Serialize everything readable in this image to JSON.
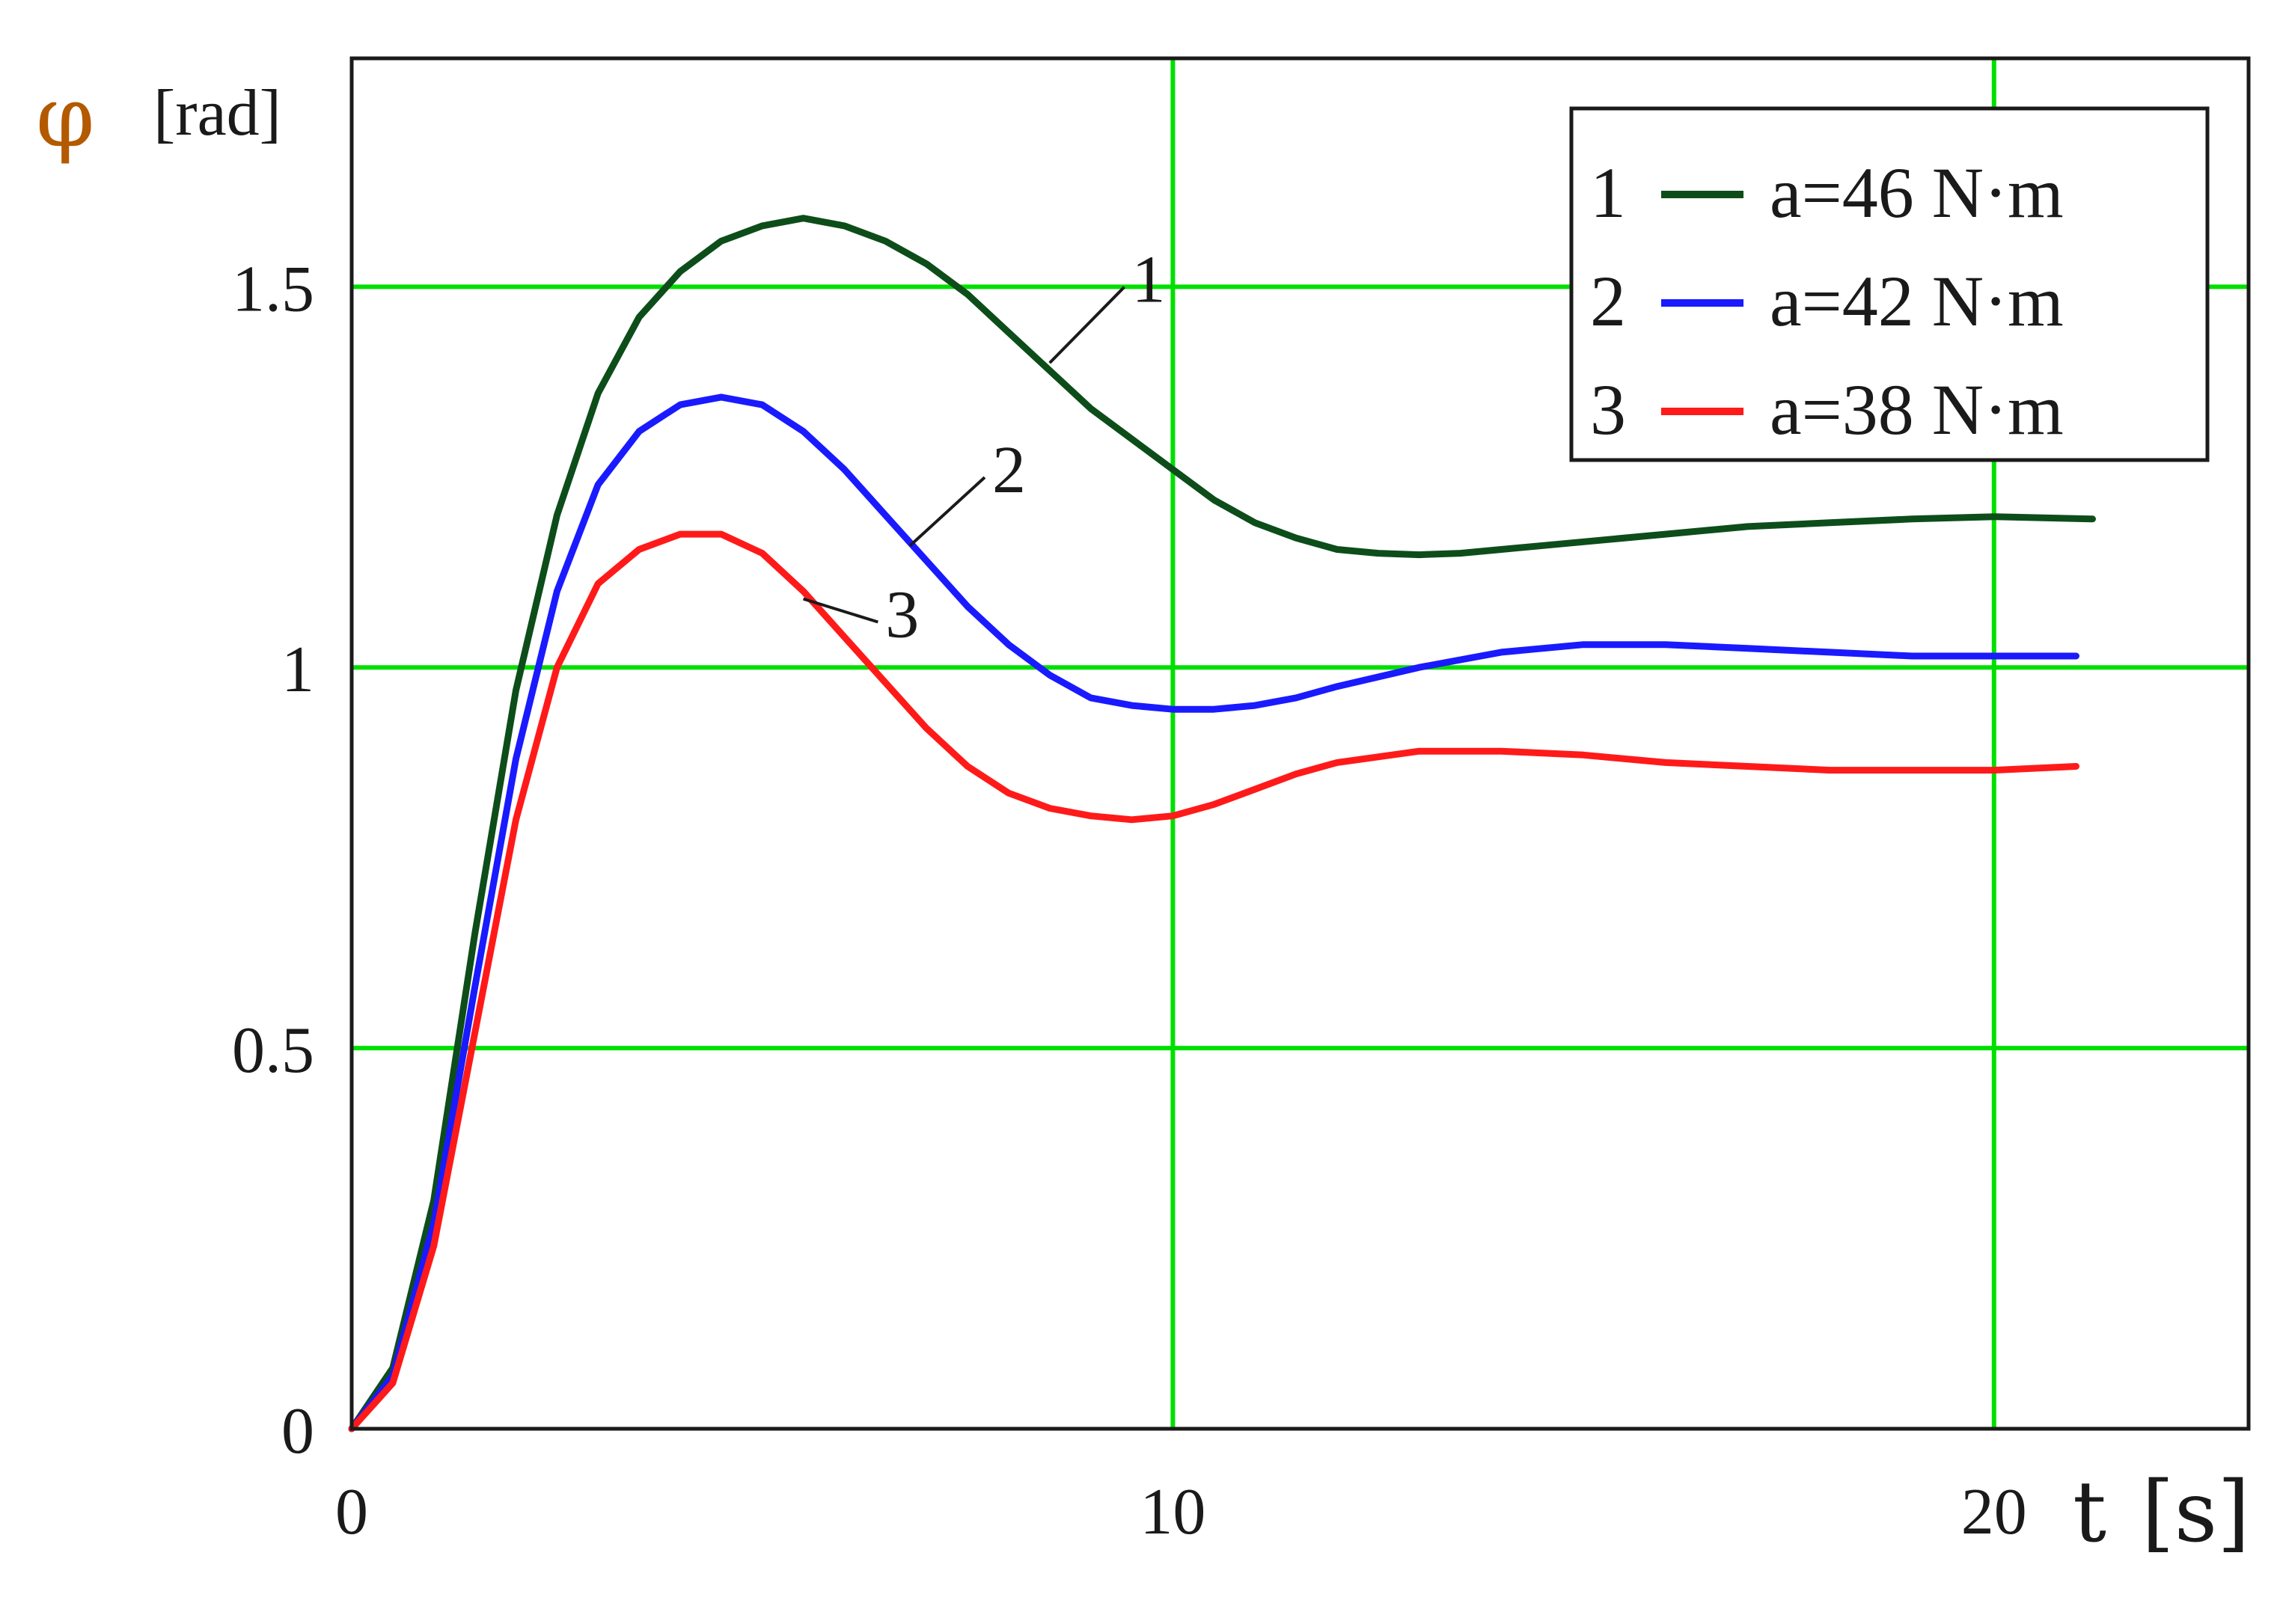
{
  "chart_data": {
    "type": "line",
    "xlabel_symbol": "t",
    "xlabel_unit": "[s]",
    "ylabel_symbol": "φ",
    "ylabel_unit": "[rad]",
    "xlim": [
      0,
      23.1
    ],
    "ylim": [
      0,
      1.8
    ],
    "x_ticks": [
      0,
      10,
      20
    ],
    "x_tick_labels": [
      "0",
      "10",
      "20"
    ],
    "y_ticks": [
      0,
      0.5,
      1,
      1.5
    ],
    "y_tick_labels": [
      "0",
      "0.5",
      "1",
      "1.5"
    ],
    "grid": true,
    "legend_position": "top-right",
    "colors": {
      "grid": "#00e000",
      "frame": "#1a1a1a",
      "axis_symbol": "#b35900",
      "axis_unit_bracket": "#4a6fa5"
    },
    "series": [
      {
        "name": "a=46 N·m",
        "legend_index": "1",
        "curve_label": "1",
        "color": "#0d4d1a",
        "points": [
          [
            0,
            0
          ],
          [
            0.5,
            0.08
          ],
          [
            1.0,
            0.3
          ],
          [
            1.5,
            0.65
          ],
          [
            2.0,
            0.97
          ],
          [
            2.5,
            1.2
          ],
          [
            3.0,
            1.36
          ],
          [
            3.5,
            1.46
          ],
          [
            4.0,
            1.52
          ],
          [
            4.5,
            1.56
          ],
          [
            5.0,
            1.58
          ],
          [
            5.5,
            1.59
          ],
          [
            6.0,
            1.58
          ],
          [
            6.5,
            1.56
          ],
          [
            7.0,
            1.53
          ],
          [
            7.5,
            1.49
          ],
          [
            8.0,
            1.44
          ],
          [
            8.5,
            1.39
          ],
          [
            9.0,
            1.34
          ],
          [
            9.5,
            1.3
          ],
          [
            10.0,
            1.26
          ],
          [
            10.5,
            1.22
          ],
          [
            11.0,
            1.19
          ],
          [
            11.5,
            1.17
          ],
          [
            12.0,
            1.155
          ],
          [
            12.5,
            1.15
          ],
          [
            13.0,
            1.148
          ],
          [
            13.5,
            1.15
          ],
          [
            14.0,
            1.155
          ],
          [
            15.0,
            1.165
          ],
          [
            16.0,
            1.175
          ],
          [
            17.0,
            1.185
          ],
          [
            18.0,
            1.19
          ],
          [
            19.0,
            1.195
          ],
          [
            20.0,
            1.198
          ],
          [
            21.2,
            1.195
          ]
        ]
      },
      {
        "name": "a=42 N·m",
        "legend_index": "2",
        "curve_label": "2",
        "color": "#1a1aff",
        "points": [
          [
            0,
            0
          ],
          [
            0.5,
            0.07
          ],
          [
            1.0,
            0.27
          ],
          [
            1.5,
            0.58
          ],
          [
            2.0,
            0.88
          ],
          [
            2.5,
            1.1
          ],
          [
            3.0,
            1.24
          ],
          [
            3.5,
            1.31
          ],
          [
            4.0,
            1.345
          ],
          [
            4.5,
            1.355
          ],
          [
            5.0,
            1.345
          ],
          [
            5.5,
            1.31
          ],
          [
            6.0,
            1.26
          ],
          [
            6.5,
            1.2
          ],
          [
            7.0,
            1.14
          ],
          [
            7.5,
            1.08
          ],
          [
            8.0,
            1.03
          ],
          [
            8.5,
            0.99
          ],
          [
            9.0,
            0.96
          ],
          [
            9.5,
            0.95
          ],
          [
            10.0,
            0.945
          ],
          [
            10.5,
            0.945
          ],
          [
            11.0,
            0.95
          ],
          [
            11.5,
            0.96
          ],
          [
            12.0,
            0.975
          ],
          [
            13.0,
            1.0
          ],
          [
            14.0,
            1.02
          ],
          [
            15.0,
            1.03
          ],
          [
            16.0,
            1.03
          ],
          [
            17.0,
            1.025
          ],
          [
            18.0,
            1.02
          ],
          [
            19.0,
            1.015
          ],
          [
            20.0,
            1.015
          ],
          [
            21.0,
            1.015
          ]
        ]
      },
      {
        "name": "a=38 N·m",
        "legend_index": "3",
        "curve_label": "3",
        "color": "#ff1a1a",
        "points": [
          [
            0,
            0
          ],
          [
            0.5,
            0.06
          ],
          [
            1.0,
            0.24
          ],
          [
            1.5,
            0.52
          ],
          [
            2.0,
            0.8
          ],
          [
            2.5,
            1.0
          ],
          [
            3.0,
            1.11
          ],
          [
            3.5,
            1.155
          ],
          [
            4.0,
            1.175
          ],
          [
            4.5,
            1.175
          ],
          [
            5.0,
            1.15
          ],
          [
            5.5,
            1.1
          ],
          [
            6.0,
            1.04
          ],
          [
            6.5,
            0.98
          ],
          [
            7.0,
            0.92
          ],
          [
            7.5,
            0.87
          ],
          [
            8.0,
            0.835
          ],
          [
            8.5,
            0.815
          ],
          [
            9.0,
            0.805
          ],
          [
            9.5,
            0.8
          ],
          [
            10.0,
            0.805
          ],
          [
            10.5,
            0.82
          ],
          [
            11.0,
            0.84
          ],
          [
            11.5,
            0.86
          ],
          [
            12.0,
            0.875
          ],
          [
            13.0,
            0.89
          ],
          [
            14.0,
            0.89
          ],
          [
            15.0,
            0.885
          ],
          [
            16.0,
            0.875
          ],
          [
            17.0,
            0.87
          ],
          [
            18.0,
            0.865
          ],
          [
            19.0,
            0.865
          ],
          [
            20.0,
            0.865
          ],
          [
            21.0,
            0.87
          ]
        ]
      }
    ]
  }
}
